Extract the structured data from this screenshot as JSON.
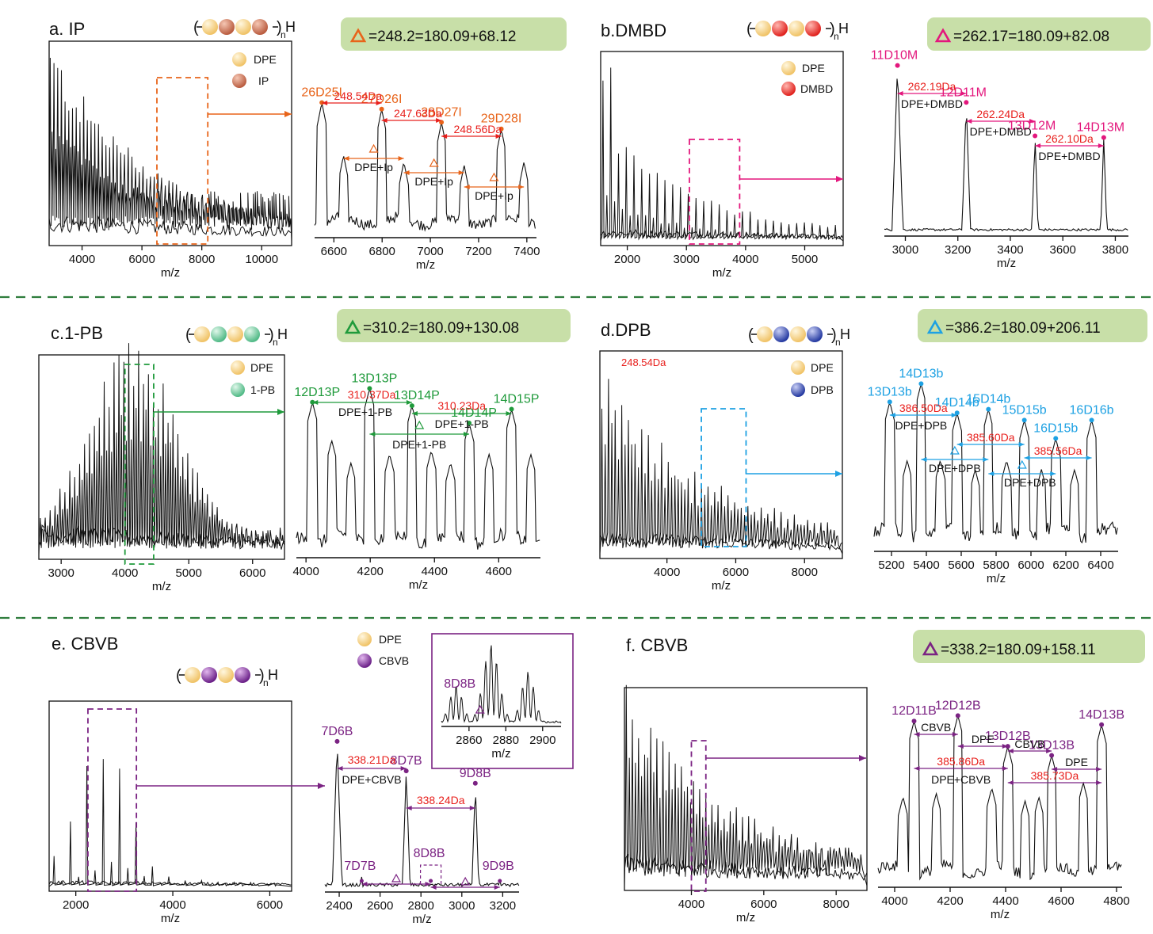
{
  "colors": {
    "IP": "#e8641a",
    "DMBD": "#e3177d",
    "PB": "#1f9a3b",
    "DPB": "#1ea1e3",
    "CBVB": "#7b2383",
    "red": "#e8201d",
    "box": "#c8dfa8",
    "dpe": "#f5cf83"
  },
  "chain": {
    "sub": "n",
    "end": "H"
  },
  "legend": {
    "dpe": "DPE",
    "ip": "IP",
    "dmbd": "DMBD",
    "pb": "1-PB",
    "dpb": "DPB",
    "cbvb": "CBVB"
  },
  "panels": [
    {
      "id": "a",
      "title": "a. IP",
      "formula": "=248.2=180.09+68.12",
      "legend": [
        "DPE",
        "IP"
      ],
      "overview": {
        "xlabel": "m/z",
        "xticks": [
          4000,
          6000,
          8000,
          10000
        ],
        "xlim": [
          2900,
          11000
        ],
        "spacing": 124,
        "highlight": [
          6500,
          8200
        ]
      },
      "zoom": {
        "xlabel": "m/z",
        "xticks": [
          6600,
          6800,
          7000,
          7200,
          7400
        ],
        "xlim": [
          6520,
          7440
        ],
        "peaks": [
          {
            "x": 6550,
            "label": "26D25I"
          },
          {
            "x": 6798,
            "label": "27D26I"
          },
          {
            "x": 7046,
            "label": "28D27I"
          },
          {
            "x": 7294,
            "label": "29D28I"
          }
        ],
        "deltas": [
          "248.54Da",
          "247.63Da",
          "248.56Da"
        ],
        "combo": "DPE+Ip"
      }
    },
    {
      "id": "b",
      "title": "b.DMBD",
      "formula": "=262.17=180.09+82.08",
      "legend": [
        "DPE",
        "DMBD"
      ],
      "overview": {
        "xlabel": "m/z",
        "xticks": [
          2000,
          3000,
          4000,
          5000
        ],
        "xlim": [
          1550,
          5650
        ],
        "spacing": 131,
        "highlight": [
          3050,
          3900
        ]
      },
      "zoom": {
        "xlabel": "m/z",
        "xticks": [
          3000,
          3200,
          3400,
          3600,
          3800
        ],
        "xlim": [
          2920,
          3850
        ],
        "peaks": [
          {
            "x": 2970,
            "label": "11D10M"
          },
          {
            "x": 3232,
            "label": "12D11M"
          },
          {
            "x": 3494,
            "label": "13D12M"
          },
          {
            "x": 3756,
            "label": "14D13M"
          }
        ],
        "deltas": [
          "262.19Da",
          "262.24Da",
          "262.10Da"
        ],
        "combo": "DPE+DMBD"
      }
    },
    {
      "id": "c",
      "title": "c.1-PB",
      "formula": "=310.2=180.09+130.08",
      "legend": [
        "DPE",
        "1-PB"
      ],
      "overview": {
        "xlabel": "m/z",
        "xticks": [
          3000,
          4000,
          5000,
          6000
        ],
        "xlim": [
          2650,
          6500
        ],
        "spacing": 77,
        "highlight": [
          4000,
          4450
        ]
      },
      "zoom": {
        "xlabel": "m/z",
        "xticks": [
          4000,
          4200,
          4400,
          4600
        ],
        "xlim": [
          3970,
          4730
        ],
        "peaks": [
          {
            "x": 4020,
            "label": "12D13P"
          },
          {
            "x": 4198,
            "label": "13D13P"
          },
          {
            "x": 4330,
            "label": "13D14P"
          },
          {
            "x": 4508,
            "label": "14D14P"
          },
          {
            "x": 4640,
            "label": "14D15P"
          }
        ],
        "deltas": [
          "310.37Da",
          "310.23Da"
        ],
        "combo": "DPE+1-PB"
      }
    },
    {
      "id": "d",
      "title": "d.DPB",
      "formula": "=386.2=180.09+206.11",
      "legend": [
        "DPE",
        "DPB"
      ],
      "stray": "248.54Da",
      "overview": {
        "xlabel": "m/z",
        "xticks": [
          4000,
          6000,
          8000
        ],
        "xlim": [
          2050,
          9100
        ],
        "spacing": 193,
        "highlight": [
          5000,
          6300
        ]
      },
      "zoom": {
        "xlabel": "m/z",
        "xticks": [
          5200,
          5400,
          5600,
          5800,
          6000,
          6200,
          6400
        ],
        "xlim": [
          5100,
          6500
        ],
        "peaks": [
          {
            "x": 5190,
            "label": "13D13b"
          },
          {
            "x": 5370,
            "label": "14D13b"
          },
          {
            "x": 5576,
            "label": "14D14b"
          },
          {
            "x": 5756,
            "label": "15D14b"
          },
          {
            "x": 5962,
            "label": "15D15b"
          },
          {
            "x": 6142,
            "label": "16D15b"
          },
          {
            "x": 6348,
            "label": "16D16b"
          }
        ],
        "deltas": [
          "386.50Da",
          "385.60Da",
          "385.56Da"
        ],
        "combo": "DPE+DPB"
      }
    },
    {
      "id": "e",
      "title": "e. CBVB",
      "legend": [
        "DPE",
        "CBVB"
      ],
      "overview": {
        "xlabel": "m/z",
        "xticks": [
          2000,
          4000,
          6000
        ],
        "xlim": [
          1450,
          6450
        ],
        "spacing": 338,
        "highlight": [
          2250,
          3250
        ]
      },
      "zoom": {
        "xlabel": "m/z",
        "xticks": [
          2400,
          2600,
          2800,
          3000,
          3200
        ],
        "xlim": [
          2330,
          3280
        ],
        "peaks": [
          {
            "x": 2390,
            "label": "7D6B"
          },
          {
            "x": 2728,
            "label": "8D7B"
          },
          {
            "x": 3066,
            "label": "9D8B"
          }
        ],
        "minor": [
          {
            "x": 2510,
            "label": "7D7B"
          },
          {
            "x": 2848,
            "label": "8D8B"
          },
          {
            "x": 3186,
            "label": "9D9B"
          }
        ],
        "deltas": [
          "338.21Da",
          "338.24Da"
        ],
        "combo": "DPE+CBVB"
      },
      "inset": {
        "xlabel": "m/z",
        "xticks": [
          2860,
          2880,
          2900
        ],
        "xlim": [
          2845,
          2910
        ],
        "label": "8D8B"
      }
    },
    {
      "id": "f",
      "title": "f. CBVB",
      "formula": "=338.2=180.09+158.11",
      "overview": {
        "xlabel": "m/z",
        "xticks": [
          4000,
          6000,
          8000
        ],
        "xlim": [
          2150,
          8850
        ],
        "spacing": 169,
        "highlight": [
          4000,
          4400
        ]
      },
      "zoom": {
        "xlabel": "m/z",
        "xticks": [
          4000,
          4200,
          4400,
          4600,
          4800
        ],
        "xlim": [
          3940,
          4820
        ],
        "peaks": [
          {
            "x": 4070,
            "label": "12D11B"
          },
          {
            "x": 4228,
            "label": "12D12B"
          },
          {
            "x": 4408,
            "label": "13D12B"
          },
          {
            "x": 4566,
            "label": "13D13B"
          },
          {
            "x": 4746,
            "label": "14D13B"
          }
        ],
        "deltas": [
          "385.86Da",
          "385.73Da"
        ],
        "segs": [
          "CBVB",
          "DPE",
          "CBVB",
          "DPE"
        ],
        "combo": "DPE+CBVB"
      }
    }
  ]
}
